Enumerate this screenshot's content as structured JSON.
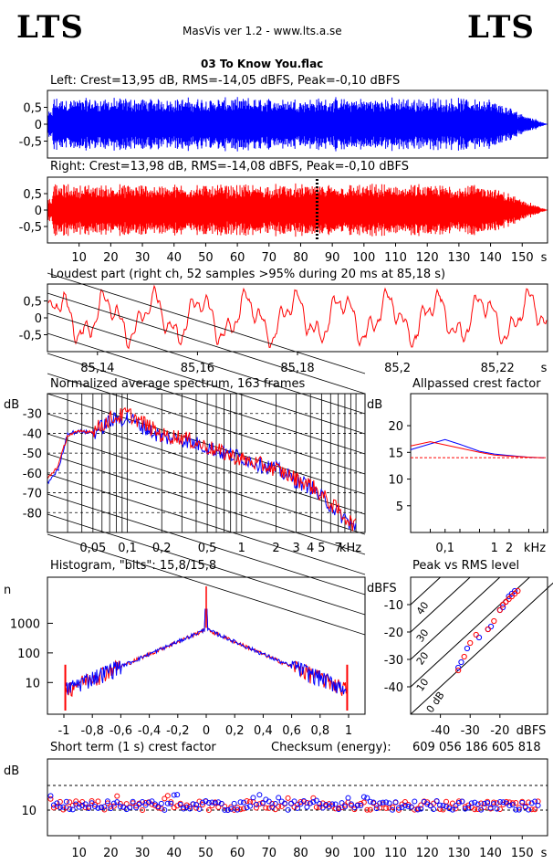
{
  "header": {
    "logo_left": "LTS",
    "logo_right": "LTS",
    "app_title": "MasVis ver 1.2 - www.lts.a.se",
    "file_name": "03 To Know You.flac"
  },
  "colors": {
    "left": "#0000ff",
    "right": "#ff0000",
    "axis": "#000000",
    "ref_line": "#ff0000"
  },
  "chart_data": [
    {
      "id": "left",
      "type": "line",
      "title": "Left: Crest=13,95 dB, RMS=-14,05 dBFS, Peak=-0,10 dBFS",
      "ylim": [
        -1,
        1
      ],
      "y_ticks": [
        "0.5",
        "0",
        "-0.5"
      ],
      "series": [
        {
          "color": "#0000ff"
        }
      ]
    },
    {
      "id": "right",
      "type": "line",
      "title": "Right: Crest=13,98 dB, RMS=-14,08 dBFS, Peak=-0,10 dBFS",
      "ylim": [
        -1,
        1
      ],
      "y_ticks": [
        "0.5",
        "0",
        "-0.5"
      ],
      "loudest_marker_s": 85.18,
      "x_ticks": [
        "10",
        "20",
        "30",
        "40",
        "50",
        "60",
        "70",
        "80",
        "90",
        "100",
        "110",
        "120",
        "130",
        "140",
        "150"
      ],
      "x_unit": "s",
      "series": [
        {
          "color": "#ff0000"
        }
      ]
    },
    {
      "id": "loudest",
      "type": "line",
      "title": "Loudest part (right ch, 52 samples >95% during 20 ms at 85,18 s)",
      "xlim": [
        85.13,
        85.23
      ],
      "ylim": [
        -1,
        1
      ],
      "y_ticks": [
        "0.5",
        "0",
        "-0.5"
      ],
      "x_ticks": [
        "85,14",
        "85,16",
        "85,18",
        "85,2",
        "85,22"
      ],
      "x_unit": "s",
      "series": [
        {
          "color": "#ff0000"
        }
      ]
    },
    {
      "id": "spectrum",
      "type": "line",
      "title": "Normalized average spectrum, 163 frames",
      "ylabel": "dB",
      "y_ticks": [
        "-30",
        "-40",
        "-50",
        "-60",
        "-70",
        "-80"
      ],
      "x_ticks": [
        "0,05",
        "0,1",
        "0,2",
        "0,5",
        "1",
        "2",
        "3",
        "4",
        "5",
        "7"
      ],
      "x_unit": "kHz",
      "ylim": [
        -90,
        -20
      ],
      "series": [
        {
          "color": "#0000ff",
          "x": [
            0.02,
            0.025,
            0.03,
            0.04,
            0.05,
            0.07,
            0.1,
            0.15,
            0.2,
            0.3,
            0.5,
            0.7,
            1,
            1.5,
            2,
            3,
            4,
            5,
            7,
            10
          ],
          "values": [
            -65,
            -58,
            -40,
            -39,
            -40,
            -34,
            -32,
            -38,
            -42,
            -43,
            -47,
            -50,
            -52,
            -56,
            -58,
            -64,
            -67,
            -72,
            -80,
            -88
          ]
        },
        {
          "color": "#ff0000",
          "x": [
            0.02,
            0.025,
            0.03,
            0.04,
            0.05,
            0.07,
            0.1,
            0.15,
            0.2,
            0.3,
            0.5,
            0.7,
            1,
            1.5,
            2,
            3,
            4,
            5,
            7,
            10
          ],
          "values": [
            -63,
            -56,
            -41,
            -39,
            -39,
            -33,
            -30,
            -36,
            -41,
            -42,
            -47,
            -50,
            -53,
            -56,
            -58,
            -63,
            -66,
            -71,
            -79,
            -87
          ]
        }
      ]
    },
    {
      "id": "allpass",
      "type": "line",
      "title": "Allpassed crest factor",
      "ylabel": "dB",
      "y_ticks": [
        "20",
        "15",
        "10",
        "5"
      ],
      "x_ticks": [
        "0,1",
        "1",
        "2"
      ],
      "x_unit": "kHz",
      "ylim": [
        0,
        26
      ],
      "ref_crest_db": 14,
      "series": [
        {
          "color": "#0000ff",
          "x": [
            0.02,
            0.05,
            0.1,
            0.2,
            0.5,
            1,
            2,
            5,
            10
          ],
          "values": [
            15.5,
            16.6,
            17.4,
            16.5,
            15.2,
            14.7,
            14.4,
            14.1,
            14.0
          ]
        },
        {
          "color": "#ff0000",
          "x": [
            0.02,
            0.05,
            0.1,
            0.2,
            0.5,
            1,
            2,
            5,
            10
          ],
          "values": [
            16.2,
            17.0,
            16.4,
            15.8,
            15.0,
            14.5,
            14.3,
            14.1,
            14.0
          ]
        }
      ]
    },
    {
      "id": "histogram",
      "type": "line",
      "title": "Histogram, \"bits\": 15,8/15,8",
      "ylabel": "n",
      "y_ticks": [
        "1000",
        "100",
        "10"
      ],
      "x_ticks": [
        "-1",
        "-0,8",
        "-0,6",
        "-0,4",
        "-0,2",
        "0",
        "0,2",
        "0,4",
        "0,6",
        "0,8",
        "1"
      ],
      "xlim": [
        -1,
        1
      ]
    },
    {
      "id": "peak_rms",
      "type": "scatter",
      "title": "Peak vs RMS level",
      "ylabel": "dBFS",
      "y_ticks": [
        "-10",
        "-20",
        "-30",
        "-40"
      ],
      "x_ticks": [
        "-40",
        "-30",
        "-20"
      ],
      "x_unit": "dBFS",
      "diag_labels": [
        "40",
        "30",
        "20",
        "10",
        "0 dB"
      ],
      "series": [
        {
          "color": "#0000ff",
          "x": [
            -34,
            -33,
            -31,
            -27,
            -24,
            -23,
            -20,
            -19,
            -18,
            -17,
            -16,
            -15
          ],
          "values": [
            -33,
            -31,
            -26,
            -22,
            -19,
            -18,
            -12,
            -11,
            -9,
            -7,
            -6,
            -5
          ]
        },
        {
          "color": "#ff0000",
          "x": [
            -34,
            -32,
            -30,
            -28,
            -24,
            -22,
            -20,
            -19,
            -18,
            -17,
            -16,
            -15,
            -14
          ],
          "values": [
            -34,
            -29,
            -24,
            -21,
            -19,
            -16,
            -12,
            -10,
            -9,
            -8,
            -7,
            -6,
            -5
          ]
        }
      ]
    },
    {
      "id": "crest_st",
      "type": "scatter",
      "title": "Short term (1 s) crest factor",
      "checksum_label": "Checksum (energy):",
      "checksum_value": "609 056 186 605 818",
      "ylabel": "dB",
      "y_ticks": [
        "10"
      ],
      "x_ticks": [
        "10",
        "20",
        "30",
        "40",
        "50",
        "60",
        "70",
        "80",
        "90",
        "100",
        "110",
        "120",
        "130",
        "140",
        "150"
      ],
      "x_unit": "s"
    }
  ]
}
